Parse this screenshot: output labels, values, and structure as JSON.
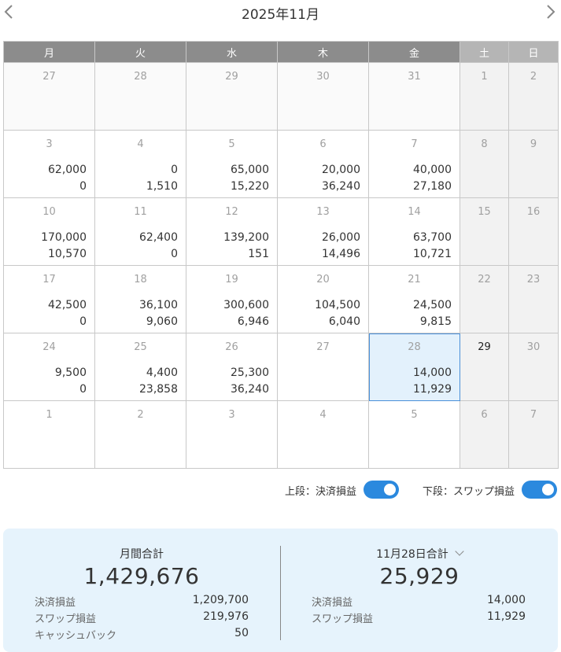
{
  "header": {
    "title": "2025年11月",
    "prev_icon": "chevron-left-icon",
    "next_icon": "chevron-right-icon"
  },
  "weekdays": [
    "月",
    "火",
    "水",
    "木",
    "金",
    "土",
    "日"
  ],
  "weeks": [
    [
      {
        "day": "27",
        "top": "",
        "bottom": "",
        "type": "other"
      },
      {
        "day": "28",
        "top": "",
        "bottom": "",
        "type": "other"
      },
      {
        "day": "29",
        "top": "",
        "bottom": "",
        "type": "other"
      },
      {
        "day": "30",
        "top": "",
        "bottom": "",
        "type": "other"
      },
      {
        "day": "31",
        "top": "",
        "bottom": "",
        "type": "other"
      },
      {
        "day": "1",
        "top": "",
        "bottom": "",
        "type": "weekend"
      },
      {
        "day": "2",
        "top": "",
        "bottom": "",
        "type": "weekend"
      }
    ],
    [
      {
        "day": "3",
        "top": "62,000",
        "bottom": "0",
        "type": "normal"
      },
      {
        "day": "4",
        "top": "0",
        "bottom": "1,510",
        "type": "normal"
      },
      {
        "day": "5",
        "top": "65,000",
        "bottom": "15,220",
        "type": "normal"
      },
      {
        "day": "6",
        "top": "20,000",
        "bottom": "36,240",
        "type": "normal"
      },
      {
        "day": "7",
        "top": "40,000",
        "bottom": "27,180",
        "type": "normal"
      },
      {
        "day": "8",
        "top": "",
        "bottom": "",
        "type": "weekend"
      },
      {
        "day": "9",
        "top": "",
        "bottom": "",
        "type": "weekend"
      }
    ],
    [
      {
        "day": "10",
        "top": "170,000",
        "bottom": "10,570",
        "type": "normal"
      },
      {
        "day": "11",
        "top": "62,400",
        "bottom": "0",
        "type": "normal"
      },
      {
        "day": "12",
        "top": "139,200",
        "bottom": "151",
        "type": "normal"
      },
      {
        "day": "13",
        "top": "26,000",
        "bottom": "14,496",
        "type": "normal"
      },
      {
        "day": "14",
        "top": "63,700",
        "bottom": "10,721",
        "type": "normal"
      },
      {
        "day": "15",
        "top": "",
        "bottom": "",
        "type": "weekend"
      },
      {
        "day": "16",
        "top": "",
        "bottom": "",
        "type": "weekend"
      }
    ],
    [
      {
        "day": "17",
        "top": "42,500",
        "bottom": "0",
        "type": "normal"
      },
      {
        "day": "18",
        "top": "36,100",
        "bottom": "9,060",
        "type": "normal"
      },
      {
        "day": "19",
        "top": "300,600",
        "bottom": "6,946",
        "type": "normal"
      },
      {
        "day": "20",
        "top": "104,500",
        "bottom": "6,040",
        "type": "normal"
      },
      {
        "day": "21",
        "top": "24,500",
        "bottom": "9,815",
        "type": "normal"
      },
      {
        "day": "22",
        "top": "",
        "bottom": "",
        "type": "weekend"
      },
      {
        "day": "23",
        "top": "",
        "bottom": "",
        "type": "weekend"
      }
    ],
    [
      {
        "day": "24",
        "top": "9,500",
        "bottom": "0",
        "type": "normal"
      },
      {
        "day": "25",
        "top": "4,400",
        "bottom": "23,858",
        "type": "normal"
      },
      {
        "day": "26",
        "top": "25,300",
        "bottom": "36,240",
        "type": "normal"
      },
      {
        "day": "27",
        "top": "",
        "bottom": "",
        "type": "normal"
      },
      {
        "day": "28",
        "top": "14,000",
        "bottom": "11,929",
        "type": "selected"
      },
      {
        "day": "29",
        "top": "",
        "bottom": "",
        "type": "today"
      },
      {
        "day": "30",
        "top": "",
        "bottom": "",
        "type": "weekend"
      }
    ],
    [
      {
        "day": "1",
        "top": "",
        "bottom": "",
        "type": "normal"
      },
      {
        "day": "2",
        "top": "",
        "bottom": "",
        "type": "normal"
      },
      {
        "day": "3",
        "top": "",
        "bottom": "",
        "type": "normal"
      },
      {
        "day": "4",
        "top": "",
        "bottom": "",
        "type": "normal"
      },
      {
        "day": "5",
        "top": "",
        "bottom": "",
        "type": "normal"
      },
      {
        "day": "6",
        "top": "",
        "bottom": "",
        "type": "weekend"
      },
      {
        "day": "7",
        "top": "",
        "bottom": "",
        "type": "weekend"
      }
    ]
  ],
  "toggles": {
    "upper_label": "上段：決済損益",
    "upper_on": true,
    "lower_label": "下段：スワップ損益",
    "lower_on": true
  },
  "summary": {
    "monthly": {
      "title": "月間合計",
      "total": "1,429,676",
      "rows": [
        {
          "label": "決済損益",
          "value": "1,209,700"
        },
        {
          "label": "スワップ損益",
          "value": "219,976"
        },
        {
          "label": "キャッシュバック",
          "value": "50"
        }
      ]
    },
    "daily": {
      "title": "11月28日合計",
      "dropdown_icon": "chevron-down-icon",
      "total": "25,929",
      "rows": [
        {
          "label": "決済損益",
          "value": "14,000"
        },
        {
          "label": "スワップ損益",
          "value": "11,929"
        }
      ]
    }
  },
  "colors": {
    "header_bg": "#8c8c8c",
    "weekend_header_bg": "#b5b5b5",
    "selected_bg": "#e3f1fc",
    "selected_border": "#4a90d9",
    "toggle_on": "#2b89de",
    "summary_bg": "#e6f3fc"
  }
}
